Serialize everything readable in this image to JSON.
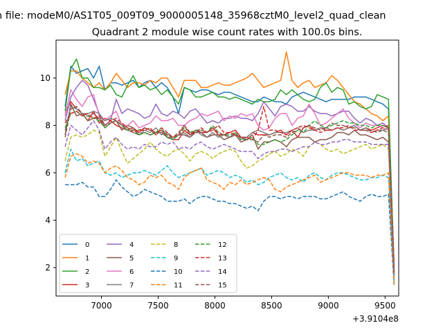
{
  "figure": {
    "suptitle": "n file: modeM0/AS1T05_009T09_9000005148_35968cztM0_level2_quad_clean",
    "title": "Quadrant 2 module wise count rates with 100.0s bins."
  },
  "chart_data": {
    "type": "line",
    "title": "Quadrant 2 module wise count rates with 100.0s bins.",
    "xlabel": "",
    "ylabel": "",
    "x_offset_label": "+3.9104e8",
    "xlim": [
      6600,
      9620
    ],
    "ylim": [
      0.8,
      11.6
    ],
    "xticks": [
      7000,
      7500,
      8000,
      8500,
      9000,
      9500
    ],
    "yticks": [
      2,
      4,
      6,
      8,
      10
    ],
    "grid": false,
    "legend": {
      "placement": "lower-left",
      "columns": 4
    },
    "x": [
      6680,
      6730,
      6780,
      6830,
      6880,
      6930,
      6980,
      7030,
      7080,
      7130,
      7180,
      7230,
      7280,
      7330,
      7380,
      7430,
      7480,
      7530,
      7580,
      7630,
      7680,
      7730,
      7780,
      7830,
      7880,
      7930,
      7980,
      8030,
      8080,
      8130,
      8180,
      8230,
      8280,
      8330,
      8380,
      8430,
      8480,
      8530,
      8580,
      8630,
      8680,
      8730,
      8780,
      8830,
      8880,
      8930,
      8980,
      9030,
      9080,
      9130,
      9180,
      9230,
      9280,
      9330,
      9380,
      9430,
      9480,
      9530,
      9580
    ],
    "series": [
      {
        "name": "0",
        "color": "#1f77b4",
        "style": "solid",
        "values": [
          8.8,
          10.5,
          10.2,
          10.3,
          10.4,
          10.0,
          10.5,
          9.5,
          9.8,
          9.8,
          9.7,
          9.8,
          9.9,
          9.6,
          9.8,
          9.9,
          9.6,
          9.8,
          9.6,
          9.2,
          8.5,
          9.6,
          9.5,
          9.4,
          9.5,
          9.5,
          9.4,
          9.3,
          9.4,
          9.4,
          9.3,
          9.2,
          9.1,
          9.0,
          9.0,
          9.2,
          9.1,
          9.0,
          9.0,
          8.9,
          9.2,
          9.3,
          9.4,
          9.3,
          9.2,
          9.1,
          9.0,
          9.1,
          9.1,
          9.1,
          9.1,
          9.2,
          9.2,
          9.2,
          9.1,
          9.0,
          8.9,
          8.7,
          2.0
        ]
      },
      {
        "name": "1",
        "color": "#ff7f0e",
        "style": "solid",
        "values": [
          9.3,
          10.3,
          10.3,
          10.0,
          9.8,
          9.6,
          9.8,
          9.5,
          9.8,
          10.2,
          9.9,
          9.6,
          9.8,
          9.8,
          9.7,
          9.9,
          9.8,
          10.0,
          10.0,
          9.6,
          9.2,
          9.9,
          9.9,
          9.9,
          9.6,
          9.6,
          9.7,
          9.8,
          9.7,
          9.7,
          9.8,
          9.9,
          10.0,
          10.2,
          9.9,
          9.6,
          9.7,
          9.8,
          9.9,
          11.1,
          9.9,
          9.6,
          9.8,
          9.9,
          9.6,
          9.7,
          9.8,
          10.1,
          9.9,
          9.6,
          9.3,
          9.0,
          8.9,
          8.7,
          8.5,
          8.4,
          8.2,
          8.4,
          2.2
        ]
      },
      {
        "name": "2",
        "color": "#2ca02c",
        "style": "solid",
        "values": [
          8.6,
          10.4,
          10.8,
          10.0,
          10.0,
          9.6,
          9.6,
          9.5,
          9.7,
          9.3,
          9.2,
          9.7,
          10.1,
          9.6,
          9.7,
          9.5,
          9.6,
          9.3,
          9.5,
          9.2,
          8.9,
          9.6,
          9.5,
          9.2,
          9.2,
          9.3,
          9.4,
          9.2,
          9.2,
          9.1,
          9.2,
          9.1,
          9.0,
          8.9,
          9.1,
          9.0,
          9.0,
          9.1,
          9.5,
          9.3,
          9.5,
          9.3,
          9.1,
          9.0,
          9.1,
          9.6,
          9.8,
          9.4,
          9.6,
          9.5,
          8.9,
          9.0,
          8.8,
          8.7,
          8.8,
          9.3,
          9.2,
          9.1,
          1.9
        ]
      },
      {
        "name": "3",
        "color": "#d62728",
        "style": "solid",
        "values": [
          8.5,
          9.0,
          8.7,
          8.5,
          8.2,
          8.6,
          8.1,
          8.3,
          8.2,
          8.0,
          7.9,
          7.8,
          7.9,
          7.7,
          7.9,
          7.8,
          7.7,
          7.8,
          7.5,
          7.4,
          7.4,
          7.8,
          7.6,
          7.8,
          7.7,
          7.7,
          7.9,
          7.6,
          7.6,
          7.7,
          7.8,
          7.5,
          7.5,
          7.7,
          7.6,
          7.6,
          7.6,
          7.7,
          7.8,
          7.6,
          7.8,
          7.5,
          7.9,
          8.0,
          7.8,
          7.9,
          7.8,
          7.8,
          7.9,
          7.8,
          7.9,
          8.0,
          7.8,
          7.9,
          7.8,
          7.9,
          8.0,
          7.9,
          1.8
        ]
      },
      {
        "name": "4",
        "color": "#9467bd",
        "style": "solid",
        "values": [
          8.2,
          9.2,
          9.6,
          9.9,
          9.7,
          9.1,
          8.5,
          8.0,
          8.2,
          9.1,
          8.5,
          8.7,
          8.6,
          8.5,
          8.3,
          8.4,
          8.9,
          8.5,
          8.4,
          8.6,
          8.5,
          8.3,
          8.6,
          8.7,
          8.4,
          8.1,
          8.2,
          8.1,
          8.3,
          8.3,
          8.4,
          8.3,
          8.3,
          8.2,
          8.5,
          9.0,
          8.7,
          8.4,
          8.8,
          8.9,
          8.8,
          8.6,
          8.6,
          8.8,
          8.6,
          8.5,
          8.5,
          8.4,
          8.5,
          8.6,
          8.6,
          8.3,
          8.1,
          8.3,
          8.2,
          8.0,
          8.1,
          7.9,
          1.9
        ]
      },
      {
        "name": "5",
        "color": "#8c564b",
        "style": "solid",
        "values": [
          7.6,
          8.9,
          8.4,
          8.5,
          8.2,
          8.3,
          8.3,
          7.9,
          8.1,
          8.2,
          7.8,
          8.0,
          7.9,
          7.6,
          7.7,
          7.6,
          7.7,
          7.7,
          7.5,
          7.5,
          7.6,
          7.6,
          7.5,
          7.7,
          7.7,
          7.5,
          7.6,
          7.6,
          7.4,
          7.5,
          7.6,
          7.3,
          7.4,
          7.6,
          7.0,
          7.3,
          7.3,
          7.4,
          7.3,
          7.1,
          7.4,
          7.5,
          7.5,
          7.5,
          7.3,
          7.4,
          7.4,
          7.5,
          7.7,
          7.7,
          7.6,
          7.8,
          7.6,
          7.6,
          7.5,
          7.4,
          7.5,
          7.3,
          1.7
        ]
      },
      {
        "name": "6",
        "color": "#e377c2",
        "style": "solid",
        "values": [
          8.4,
          9.5,
          9.1,
          8.8,
          9.2,
          9.3,
          8.4,
          8.2,
          8.4,
          8.6,
          8.0,
          8.0,
          8.2,
          7.9,
          8.0,
          8.1,
          8.4,
          8.2,
          8.2,
          8.3,
          8.0,
          8.0,
          8.2,
          8.3,
          8.5,
          8.4,
          8.5,
          8.6,
          8.2,
          8.4,
          8.3,
          8.5,
          8.4,
          8.5,
          8.0,
          7.8,
          7.9,
          8.3,
          8.5,
          8.5,
          8.0,
          8.3,
          8.4,
          8.9,
          8.5,
          8.0,
          8.1,
          8.3,
          8.5,
          8.7,
          8.3,
          8.1,
          7.9,
          8.1,
          8.0,
          8.0,
          7.9,
          7.8,
          1.8
        ]
      },
      {
        "name": "7",
        "color": "#7f7f7f",
        "style": "solid",
        "values": [
          7.8,
          8.8,
          8.7,
          8.5,
          8.5,
          8.6,
          8.5,
          8.2,
          8.3,
          8.2,
          8.0,
          7.8,
          7.7,
          7.6,
          7.8,
          7.7,
          7.9,
          7.6,
          7.7,
          7.4,
          7.6,
          7.7,
          7.5,
          7.8,
          7.6,
          7.5,
          7.7,
          7.5,
          7.6,
          7.5,
          7.7,
          7.4,
          7.5,
          7.7,
          7.8,
          7.7,
          7.6,
          7.7,
          7.7,
          7.7,
          7.8,
          7.9,
          7.7,
          7.8,
          7.8,
          7.9,
          7.9,
          7.8,
          7.9,
          7.8,
          7.9,
          8.0,
          7.8,
          7.9,
          7.7,
          7.8,
          7.8,
          7.9,
          1.6
        ]
      },
      {
        "name": "8",
        "color": "#bcbd22",
        "style": "dashed",
        "values": [
          6.5,
          7.5,
          7.6,
          7.5,
          7.6,
          7.8,
          7.7,
          6.7,
          7.1,
          7.5,
          6.9,
          6.4,
          6.6,
          6.8,
          7.0,
          7.3,
          7.0,
          6.8,
          6.7,
          6.9,
          7.0,
          6.8,
          6.5,
          6.8,
          6.9,
          6.8,
          6.6,
          6.8,
          6.9,
          7.0,
          6.9,
          6.5,
          6.2,
          6.3,
          6.5,
          6.6,
          6.8,
          6.9,
          6.7,
          6.8,
          7.0,
          6.9,
          6.7,
          7.1,
          7.3,
          7.2,
          7.0,
          6.9,
          7.0,
          6.8,
          6.9,
          7.0,
          7.1,
          7.2,
          7.0,
          7.1,
          7.2,
          7.0,
          1.5
        ]
      },
      {
        "name": "9",
        "color": "#17becf",
        "style": "dashed",
        "values": [
          6.0,
          7.0,
          6.5,
          6.6,
          6.3,
          6.4,
          6.5,
          6.0,
          5.9,
          6.0,
          5.8,
          5.9,
          6.0,
          6.0,
          6.1,
          6.0,
          5.9,
          6.1,
          6.3,
          6.0,
          5.8,
          5.9,
          6.0,
          6.1,
          6.2,
          5.9,
          6.0,
          6.1,
          6.0,
          5.8,
          5.9,
          5.8,
          5.6,
          5.7,
          5.5,
          5.6,
          5.8,
          5.9,
          6.0,
          5.8,
          5.7,
          5.8,
          5.6,
          5.9,
          6.0,
          5.8,
          5.7,
          5.9,
          6.0,
          6.0,
          5.9,
          5.8,
          5.7,
          5.7,
          5.8,
          5.8,
          5.9,
          5.8,
          1.4
        ]
      },
      {
        "name": "10",
        "color": "#1f77b4",
        "style": "dashed",
        "values": [
          5.5,
          5.5,
          5.5,
          5.6,
          5.4,
          5.4,
          5.0,
          5.0,
          5.3,
          5.7,
          5.4,
          5.2,
          5.0,
          5.1,
          5.3,
          5.2,
          5.1,
          5.0,
          4.8,
          4.8,
          4.8,
          4.9,
          4.7,
          4.9,
          5.0,
          5.0,
          4.9,
          4.8,
          4.8,
          4.7,
          4.7,
          4.6,
          4.5,
          4.6,
          4.4,
          4.8,
          5.0,
          5.0,
          4.9,
          5.0,
          5.0,
          4.9,
          5.0,
          5.0,
          5.0,
          4.9,
          4.9,
          5.0,
          5.1,
          5.2,
          5.0,
          4.9,
          4.8,
          5.0,
          5.1,
          5.0,
          5.0,
          5.1,
          1.2
        ]
      },
      {
        "name": "11",
        "color": "#ff7f0e",
        "style": "dashed",
        "values": [
          5.8,
          6.7,
          6.8,
          6.7,
          6.4,
          6.5,
          6.4,
          6.0,
          6.2,
          6.3,
          6.1,
          5.8,
          5.7,
          5.5,
          5.6,
          5.9,
          5.8,
          5.9,
          5.6,
          5.5,
          5.3,
          5.8,
          6.0,
          6.1,
          6.2,
          5.7,
          5.6,
          5.5,
          5.3,
          5.6,
          5.5,
          5.7,
          5.5,
          5.6,
          5.7,
          5.8,
          5.7,
          5.3,
          5.2,
          5.4,
          5.5,
          5.6,
          5.7,
          5.8,
          5.9,
          5.6,
          5.7,
          5.8,
          5.9,
          6.0,
          6.0,
          5.9,
          5.9,
          5.9,
          5.8,
          5.9,
          5.9,
          6.0,
          1.3
        ]
      },
      {
        "name": "12",
        "color": "#2ca02c",
        "style": "dashed",
        "values": [
          7.9,
          8.5,
          8.6,
          8.4,
          8.4,
          8.3,
          8.2,
          7.9,
          8.1,
          8.2,
          8.0,
          7.8,
          7.8,
          7.6,
          7.7,
          7.6,
          7.7,
          7.9,
          7.5,
          7.4,
          7.6,
          7.9,
          7.7,
          7.8,
          7.8,
          7.7,
          8.0,
          7.7,
          7.6,
          7.6,
          7.7,
          7.4,
          7.4,
          7.5,
          7.2,
          7.2,
          7.3,
          7.4,
          7.3,
          7.4,
          7.6,
          7.8,
          7.7,
          8.0,
          8.2,
          8.0,
          7.9,
          8.0,
          8.1,
          8.2,
          8.1,
          8.1,
          8.0,
          8.0,
          7.9,
          8.0,
          8.0,
          7.9,
          1.7
        ]
      },
      {
        "name": "13",
        "color": "#d62728",
        "style": "dashed",
        "values": [
          8.1,
          8.5,
          8.6,
          8.4,
          8.5,
          8.3,
          8.4,
          8.0,
          8.2,
          8.3,
          8.1,
          7.9,
          7.7,
          7.8,
          7.8,
          7.9,
          7.6,
          7.9,
          7.7,
          7.5,
          7.6,
          8.0,
          7.7,
          7.7,
          7.9,
          7.7,
          7.8,
          8.0,
          7.7,
          7.7,
          7.6,
          7.5,
          7.5,
          7.4,
          7.8,
          8.8,
          7.8,
          7.8,
          7.7,
          7.6,
          7.8,
          7.9,
          8.0,
          7.9,
          7.8,
          7.7,
          7.8,
          7.8,
          7.9,
          7.9,
          8.0,
          7.8,
          7.8,
          7.8,
          7.7,
          7.8,
          7.9,
          8.0,
          1.8
        ]
      },
      {
        "name": "14",
        "color": "#9467bd",
        "style": "dashed",
        "values": [
          7.1,
          8.0,
          7.8,
          7.6,
          7.9,
          8.2,
          7.8,
          7.0,
          7.3,
          7.5,
          7.2,
          7.0,
          7.1,
          7.0,
          7.2,
          7.1,
          7.1,
          7.3,
          7.2,
          7.3,
          7.0,
          7.1,
          7.0,
          7.2,
          7.3,
          7.1,
          7.0,
          7.1,
          7.2,
          7.1,
          7.0,
          6.9,
          6.9,
          6.9,
          6.6,
          6.8,
          6.9,
          6.9,
          7.0,
          7.0,
          6.9,
          7.0,
          7.1,
          7.1,
          7.3,
          7.2,
          7.2,
          7.3,
          7.3,
          7.4,
          7.4,
          7.3,
          7.3,
          7.3,
          7.2,
          7.2,
          7.2,
          7.2,
          1.7
        ]
      },
      {
        "name": "15",
        "color": "#8c564b",
        "style": "dashed",
        "values": [
          7.5,
          8.7,
          8.8,
          8.5,
          8.4,
          8.5,
          8.3,
          8.0,
          8.1,
          8.2,
          8.0,
          7.9,
          7.8,
          7.8,
          7.9,
          7.8,
          7.6,
          7.8,
          7.6,
          7.5,
          7.7,
          8.0,
          7.6,
          7.7,
          7.8,
          7.7,
          7.9,
          7.7,
          7.6,
          7.5,
          7.6,
          7.5,
          7.4,
          7.4,
          7.3,
          7.6,
          7.5,
          7.6,
          7.6,
          7.5,
          7.7,
          7.8,
          7.9,
          8.0,
          7.9,
          7.8,
          7.9,
          8.1,
          8.0,
          8.0,
          7.9,
          7.9,
          7.8,
          7.8,
          7.8,
          7.7,
          7.8,
          7.7,
          1.8
        ]
      }
    ]
  }
}
